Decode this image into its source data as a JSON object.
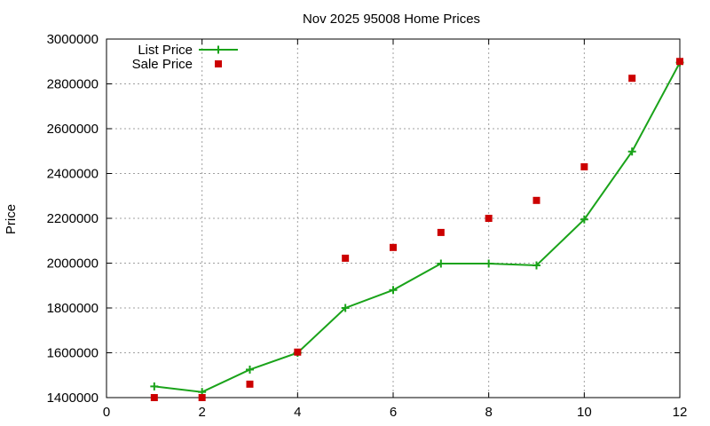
{
  "chart_data": {
    "type": "line",
    "title": "Nov 2025 95008 Home Prices",
    "xlabel": "",
    "ylabel": "Price",
    "xlim": [
      0,
      12
    ],
    "ylim": [
      1400000,
      3000000
    ],
    "xticks": [
      0,
      2,
      4,
      6,
      8,
      10,
      12
    ],
    "yticks": [
      1400000,
      1600000,
      1800000,
      2000000,
      2200000,
      2400000,
      2600000,
      2800000,
      3000000
    ],
    "grid": true,
    "legend_position": "top-left",
    "series": [
      {
        "name": "List Price",
        "style": "line-with-plus-markers",
        "color": "#1aa31a",
        "x": [
          1,
          2,
          3,
          4,
          5,
          6,
          7,
          8,
          9,
          10,
          11,
          12
        ],
        "values": [
          1450000,
          1425000,
          1525000,
          1600000,
          1800000,
          1880000,
          1998000,
          1998000,
          1990000,
          2195000,
          2498000,
          2895000
        ]
      },
      {
        "name": "Sale Price",
        "style": "square-markers",
        "color": "#cc0000",
        "x": [
          1,
          2,
          3,
          4,
          5,
          6,
          7,
          8,
          9,
          10,
          11,
          12
        ],
        "values": [
          1400000,
          1400000,
          1460000,
          1603000,
          2022000,
          2070000,
          2137000,
          2200000,
          2280000,
          2430000,
          2825000,
          2900000
        ]
      }
    ]
  }
}
